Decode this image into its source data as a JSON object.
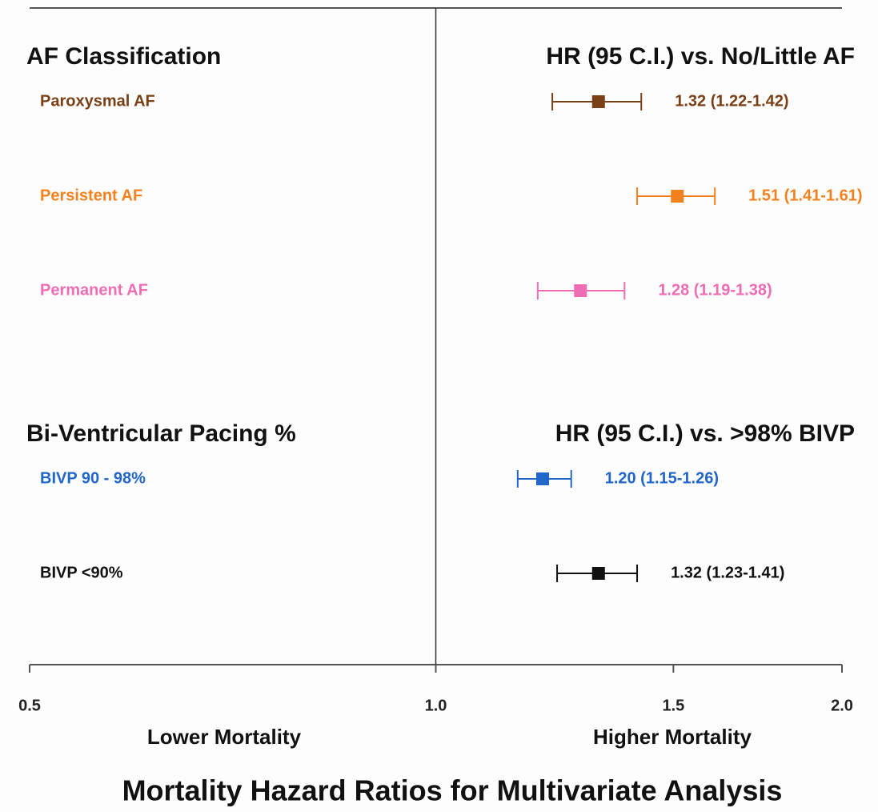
{
  "chart_data": {
    "type": "forest",
    "title": "Mortality Hazard Ratios for Multivariate Analysis",
    "xlim": [
      0.5,
      2
    ],
    "xticks": [
      0.5,
      {
        "value": 1,
        "label": "1.0"
      },
      1.5,
      {
        "value": 2,
        "label": "2.0"
      }
    ],
    "log_scale": true,
    "reference": 1,
    "annotations": [
      "Lower Mortality",
      "Higher Mortality"
    ],
    "groups": [
      {
        "name": "AF Classification",
        "header": "HR (95 C.I.) vs. No/Little AF",
        "rows": [
          {
            "name": "Paroxysmal AF",
            "color": "#7a4016",
            "value": 1.32,
            "low": 1.22,
            "high": 1.42,
            "value_label": "1.32 (1.22-1.42)"
          },
          {
            "name": "Persistent AF",
            "color": "#f4811e",
            "value": 1.51,
            "low": 1.41,
            "high": 1.61,
            "value_label": "1.51 (1.41-1.61)"
          },
          {
            "name": "Permanent AF",
            "color": "#ee6db3",
            "value": 1.28,
            "low": 1.19,
            "high": 1.38,
            "value_label": "1.28 (1.19-1.38)"
          }
        ]
      },
      {
        "name": "Bi-Ventricular Pacing %",
        "header": "HR (95 C.I.) vs. >98% BIVP",
        "rows": [
          {
            "name": "BIVP 90 - 98%",
            "color": "#2166c9",
            "value": 1.2,
            "low": 1.15,
            "high": 1.26,
            "value_label": "1.20 (1.15-1.26)"
          },
          {
            "name": "BIVP <90%",
            "color": "#111111",
            "value": 1.32,
            "low": 1.23,
            "high": 1.41,
            "value_label": "1.32 (1.23-1.41)"
          }
        ]
      }
    ]
  }
}
